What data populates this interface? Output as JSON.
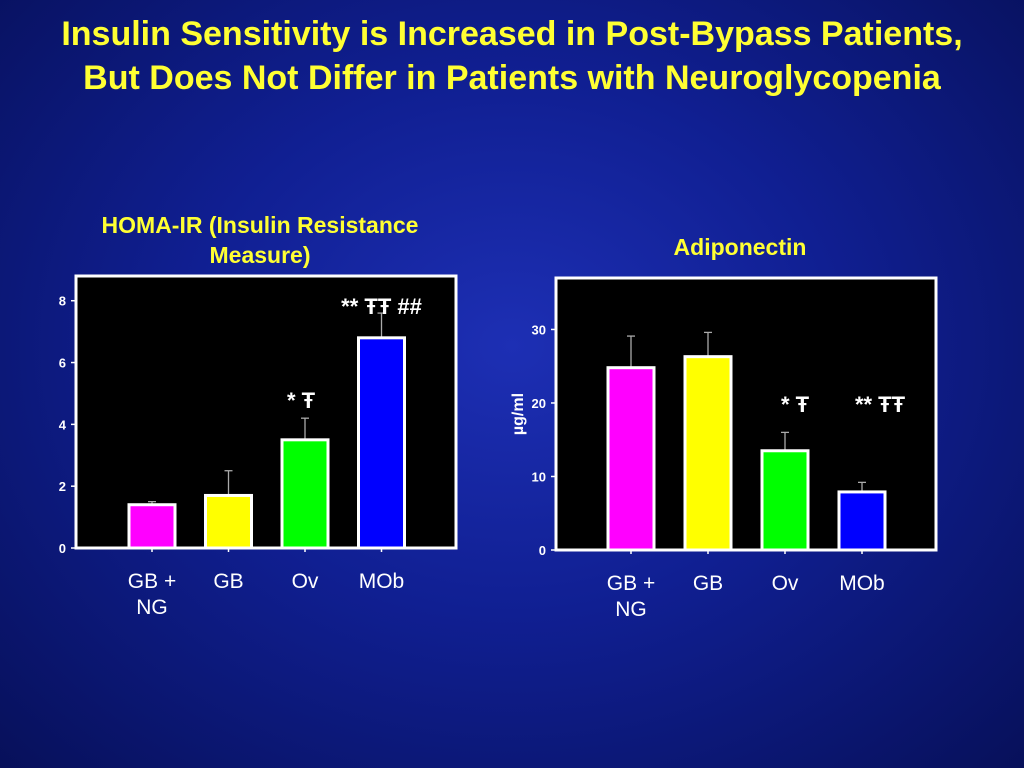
{
  "slide": {
    "title": "Insulin Sensitivity is Increased in Post-Bypass Patients, But Does Not Differ in Patients with Neuroglycopenia",
    "background": "#101f92",
    "title_color": "#ffff33"
  },
  "chart_data": [
    {
      "type": "bar",
      "title": "HOMA-IR (Insulin Resistance Measure)",
      "ylabel": "",
      "categories": [
        [
          "GB +",
          "NG"
        ],
        [
          "GB"
        ],
        [
          "Ov"
        ],
        [
          "MOb"
        ]
      ],
      "values": [
        1.4,
        1.7,
        3.5,
        6.8
      ],
      "errors": [
        0.1,
        0.8,
        0.7,
        0.8
      ],
      "colors": [
        "#ff00ff",
        "#ffff00",
        "#00ff00",
        "#0000ff"
      ],
      "ylim": [
        0,
        8.8
      ],
      "yticks": [
        0,
        2,
        4,
        6,
        8
      ],
      "annotations": [
        {
          "text": "* Ŧ",
          "category_index": 2
        },
        {
          "text": "** ŦŦ ##",
          "category_index": 3
        }
      ]
    },
    {
      "type": "bar",
      "title": "Adiponectin",
      "ylabel": "µg/ml",
      "categories": [
        [
          "GB +",
          "NG"
        ],
        [
          "GB"
        ],
        [
          "Ov"
        ],
        [
          "MOb"
        ]
      ],
      "values": [
        24.8,
        26.3,
        13.5,
        7.9
      ],
      "errors": [
        4.3,
        3.3,
        2.5,
        1.3
      ],
      "colors": [
        "#ff00ff",
        "#ffff00",
        "#00ff00",
        "#0000ff"
      ],
      "ylim": [
        0,
        37
      ],
      "yticks": [
        0,
        10,
        20,
        30
      ],
      "annotations": [
        {
          "text": "* Ŧ",
          "category_index": 2
        },
        {
          "text": "** ŦŦ",
          "category_index": 3
        }
      ]
    }
  ]
}
